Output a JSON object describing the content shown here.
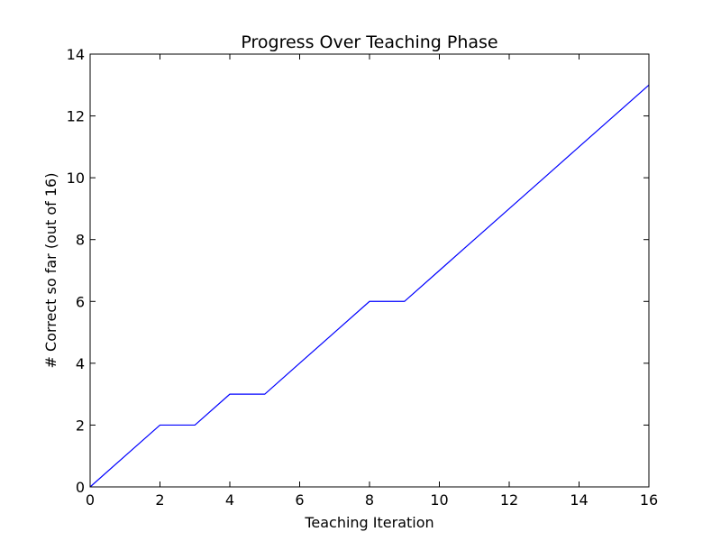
{
  "chart_data": {
    "type": "line",
    "title": "Progress Over Teaching Phase",
    "xlabel": "Teaching Iteration",
    "ylabel": "# Correct so far (out of 16)",
    "xlim": [
      0,
      16
    ],
    "ylim": [
      0,
      14
    ],
    "x_ticks": [
      0,
      2,
      4,
      6,
      8,
      10,
      12,
      14,
      16
    ],
    "y_ticks": [
      0,
      2,
      4,
      6,
      8,
      10,
      12,
      14
    ],
    "grid": false,
    "series": [
      {
        "color": "#0000ff",
        "x": [
          0,
          1,
          2,
          3,
          4,
          5,
          6,
          7,
          8,
          9,
          10,
          11,
          12,
          13,
          14,
          15,
          16
        ],
        "y": [
          0,
          1,
          2,
          2,
          3,
          3,
          4,
          5,
          6,
          6,
          7,
          8,
          9,
          10,
          11,
          12,
          13
        ]
      }
    ]
  }
}
